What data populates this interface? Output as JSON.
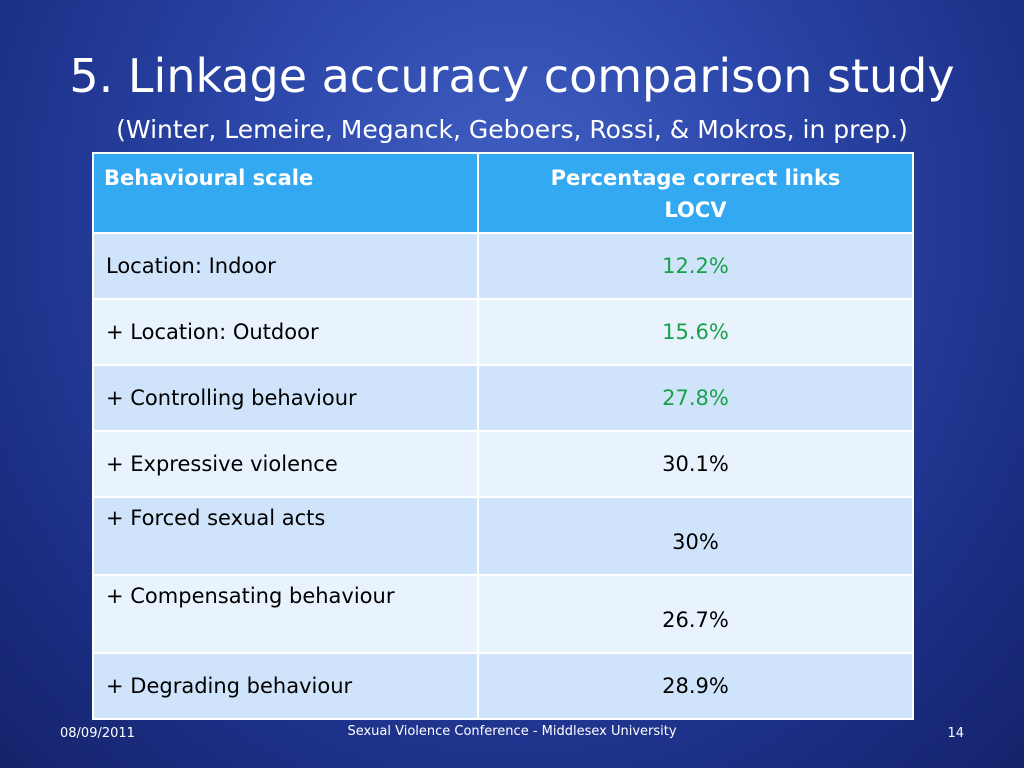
{
  "slide": {
    "title": "5. Linkage accuracy comparison study",
    "subtitle": "(Winter, Lemeire, Meganck, Geboers, Rossi, & Mokros, in prep.)"
  },
  "table": {
    "header": {
      "col1": "Behavioural scale",
      "col2_line1": "Percentage correct links",
      "col2_line2": "LOCV"
    },
    "rows": [
      {
        "label": "Location: Indoor",
        "value": "12.2%",
        "value_color": "#1aa04a"
      },
      {
        "label": "+ Location: Outdoor",
        "value": "15.6%",
        "value_color": "#1aa04a"
      },
      {
        "label": "+ Controlling behaviour",
        "value": "27.8%",
        "value_color": "#1aa04a"
      },
      {
        "label": "+ Expressive violence",
        "value": "30.1%",
        "value_color": "#000000"
      },
      {
        "label": "+ Forced sexual acts",
        "value": "30%",
        "value_color": "#000000"
      },
      {
        "label": "+ Compensating behaviour",
        "value": "26.7%",
        "value_color": "#000000"
      },
      {
        "label": "+ Degrading behaviour",
        "value": "28.9%",
        "value_color": "#000000"
      }
    ]
  },
  "footer": {
    "date": "08/09/2011",
    "center": "Sexual Violence Conference - Middlesex University",
    "page_number": "14"
  }
}
